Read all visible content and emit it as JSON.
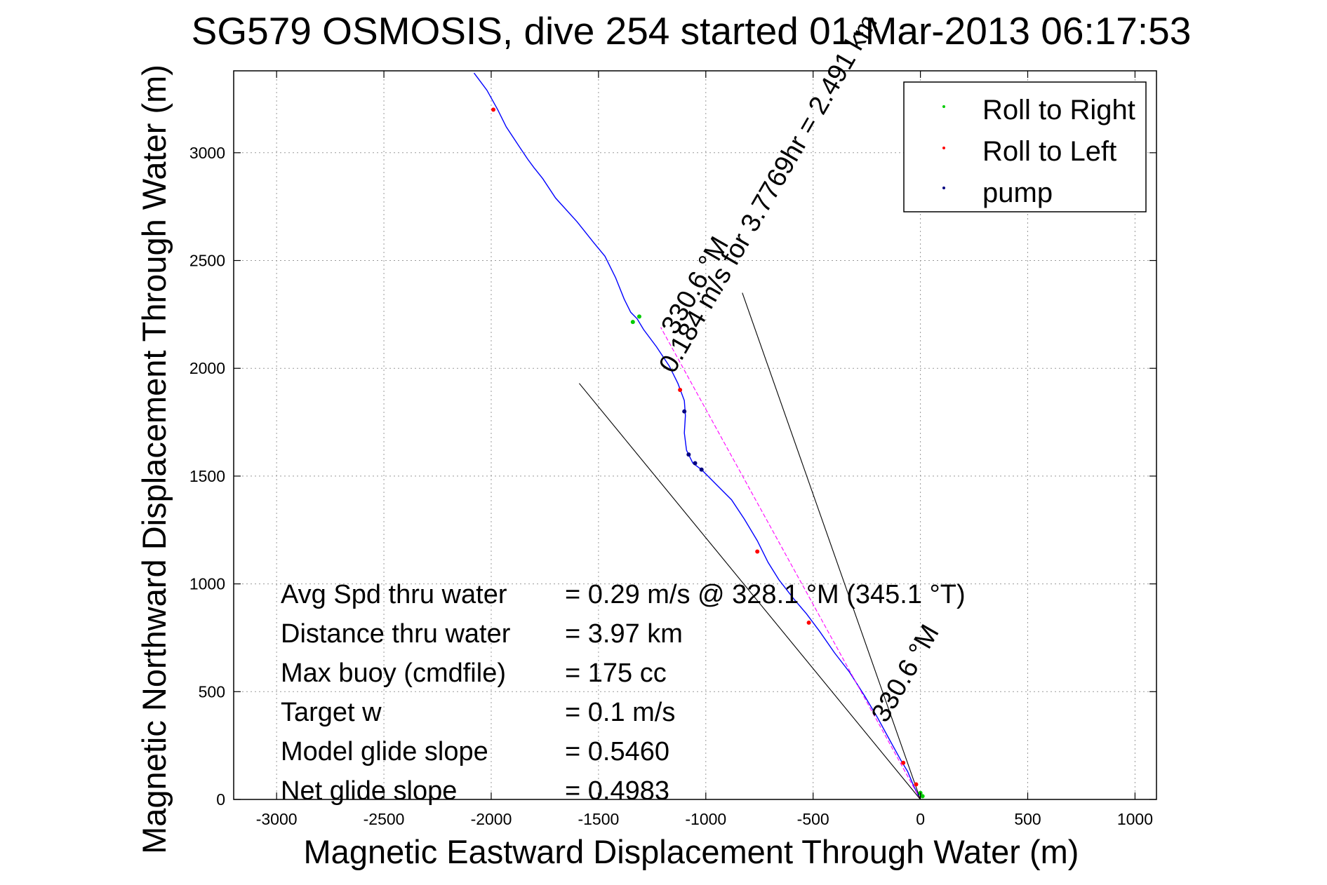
{
  "chart_data": {
    "type": "line",
    "title": "SG579 OSMOSIS, dive 254 started 01-Mar-2013 06:17:53",
    "xlabel": "Magnetic Eastward Displacement Through Water (m)",
    "ylabel": "Magnetic Northward Displacement Through Water (m)",
    "xlim": [
      -3200,
      1100
    ],
    "ylim": [
      0,
      3380
    ],
    "xticks": [
      -3000,
      -2500,
      -2000,
      -1500,
      -1000,
      -500,
      0,
      500,
      1000
    ],
    "yticks": [
      0,
      500,
      1000,
      1500,
      2000,
      2500,
      3000
    ],
    "grid": true,
    "legend": {
      "placement": "top-right",
      "entries": [
        {
          "label": "Roll to Right",
          "color": "#00cc00"
        },
        {
          "label": "Roll to Left",
          "color": "#ff0000"
        },
        {
          "label": "pump",
          "color": "#000080"
        }
      ]
    },
    "series": [
      {
        "name": "track",
        "color": "#0000ff",
        "points": [
          [
            0,
            0
          ],
          [
            -15,
            30
          ],
          [
            -30,
            60
          ],
          [
            -60,
            130
          ],
          [
            -90,
            180
          ],
          [
            -140,
            270
          ],
          [
            -200,
            380
          ],
          [
            -260,
            480
          ],
          [
            -330,
            590
          ],
          [
            -400,
            680
          ],
          [
            -470,
            780
          ],
          [
            -530,
            860
          ],
          [
            -590,
            930
          ],
          [
            -660,
            1020
          ],
          [
            -710,
            1100
          ],
          [
            -760,
            1200
          ],
          [
            -820,
            1300
          ],
          [
            -880,
            1390
          ],
          [
            -950,
            1460
          ],
          [
            -1020,
            1530
          ],
          [
            -1060,
            1560
          ],
          [
            -1090,
            1620
          ],
          [
            -1100,
            1700
          ],
          [
            -1095,
            1780
          ],
          [
            -1100,
            1850
          ],
          [
            -1130,
            1930
          ],
          [
            -1170,
            2010
          ],
          [
            -1230,
            2100
          ],
          [
            -1290,
            2180
          ],
          [
            -1320,
            2230
          ],
          [
            -1350,
            2260
          ],
          [
            -1380,
            2320
          ],
          [
            -1420,
            2420
          ],
          [
            -1470,
            2520
          ],
          [
            -1520,
            2580
          ],
          [
            -1600,
            2680
          ],
          [
            -1700,
            2790
          ],
          [
            -1760,
            2880
          ],
          [
            -1800,
            2930
          ],
          [
            -1830,
            2970
          ],
          [
            -1870,
            3030
          ],
          [
            -1930,
            3120
          ],
          [
            -1970,
            3200
          ],
          [
            -2020,
            3290
          ],
          [
            -2080,
            3370
          ]
        ]
      },
      {
        "name": "course",
        "color": "#ff00ff",
        "points": [
          [
            0,
            0
          ],
          [
            -1210,
            2190
          ]
        ]
      },
      {
        "name": "envelope-left",
        "color": "#000000",
        "points": [
          [
            0,
            0
          ],
          [
            -1590,
            1930
          ]
        ]
      },
      {
        "name": "envelope-right",
        "color": "#000000",
        "points": [
          [
            0,
            0
          ],
          [
            -830,
            2350
          ]
        ]
      },
      {
        "name": "Roll to Right",
        "color": "#00cc00",
        "points": [
          [
            0,
            30
          ],
          [
            10,
            15
          ],
          [
            -1310,
            2240
          ],
          [
            -1340,
            2215
          ]
        ]
      },
      {
        "name": "Roll to Left",
        "color": "#ff0000",
        "points": [
          [
            -20,
            70
          ],
          [
            -80,
            170
          ],
          [
            -520,
            820
          ],
          [
            -760,
            1150
          ],
          [
            -1120,
            1900
          ],
          [
            -1990,
            3200
          ]
        ]
      },
      {
        "name": "pump",
        "color": "#000080",
        "points": [
          [
            -1080,
            1600
          ],
          [
            -1050,
            1560
          ],
          [
            -1020,
            1530
          ],
          [
            -1100,
            1800
          ]
        ]
      }
    ],
    "annotations": [
      {
        "text": "0.184 m/s for 3.7769hr = 2.491 km",
        "x": -1150,
        "y": 1970,
        "angle": -60
      },
      {
        "text": "330.6 °M",
        "x": -160,
        "y": 350,
        "angle": -60
      },
      {
        "text": "330.6 °M",
        "x": -1140,
        "y": 2150,
        "angle": -60
      }
    ],
    "info": [
      {
        "label": "Avg Spd thru water",
        "value": "=  0.29 m/s @  328.1  °M (345.1  °T)"
      },
      {
        "label": "Distance thru water",
        "value": "=  3.97 km"
      },
      {
        "label": "Max buoy (cmdfile)",
        "value": "= 175 cc"
      },
      {
        "label": "Target w",
        "value": "= 0.1 m/s"
      },
      {
        "label": "Model glide slope",
        "value": "= 0.5460"
      },
      {
        "label": "Net glide slope",
        "value": "= 0.4983"
      }
    ]
  }
}
